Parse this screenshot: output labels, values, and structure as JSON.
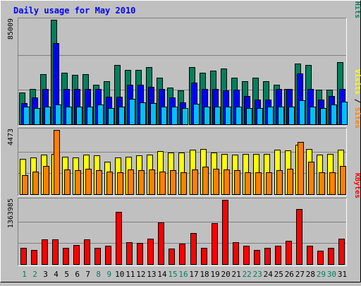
{
  "title": "Daily usage for May 2010",
  "colors": {
    "background": "#c0c0c0",
    "panel": "#c0c0c0",
    "title": "#0000ff",
    "hits": "#00805c",
    "files": "#0000ff",
    "pages": "#00c0ff",
    "visits": "#ffff00",
    "sites": "#ff8000",
    "kbytes": "#ff0000",
    "weekday_label": "#000000",
    "weekend_label": "#00805c"
  },
  "chart_data": [
    {
      "type": "bar",
      "panel": "hits",
      "ymax_label": "85009",
      "ymax": 85009,
      "legend": [
        {
          "name": "Hits",
          "sep": " / ",
          "color": "#00805c"
        },
        {
          "name": "Files",
          "sep": " / ",
          "color": "#0000ff"
        },
        {
          "name": "Pages",
          "sep": "",
          "color": "#00c0ff"
        }
      ],
      "series": [
        {
          "name": "Hits",
          "color": "#00805c",
          "values": [
            26100,
            29000,
            40600,
            85000,
            42000,
            40000,
            40600,
            31900,
            35300,
            48300,
            44000,
            44000,
            46400,
            38000,
            30000,
            27600,
            46400,
            42000,
            43400,
            45300,
            37700,
            35000,
            38000,
            34800,
            32400,
            29000,
            49300,
            48300,
            28100,
            28100,
            50700
          ]
        },
        {
          "name": "Files",
          "color": "#0000ff",
          "values": [
            17400,
            21800,
            29000,
            66200,
            29000,
            29000,
            29000,
            29000,
            22300,
            22300,
            31900,
            31900,
            30400,
            29000,
            21800,
            17900,
            33800,
            29000,
            29000,
            27600,
            28100,
            23200,
            20300,
            20300,
            29000,
            29000,
            41600,
            29000,
            20300,
            23200,
            29000
          ]
        },
        {
          "name": "Pages",
          "color": "#00c0ff",
          "values": [
            14500,
            13100,
            14500,
            15900,
            14500,
            14500,
            14500,
            15900,
            13100,
            14500,
            20800,
            17900,
            17400,
            14500,
            14500,
            13100,
            16400,
            14500,
            14500,
            14500,
            14500,
            13100,
            13100,
            14500,
            14500,
            14500,
            19300,
            14500,
            13100,
            15900,
            18400
          ]
        }
      ]
    },
    {
      "type": "bar",
      "panel": "visits",
      "ymax_label": "4473",
      "ymax": 4473,
      "legend": [
        {
          "name": "Sites",
          "sep": " / ",
          "color": "#ff8000"
        },
        {
          "name": "Visits",
          "sep": "",
          "color": "#ffff00"
        }
      ],
      "series": [
        {
          "name": "Visits",
          "color": "#ffff00",
          "values": [
            2450,
            2570,
            2760,
            2820,
            2620,
            2570,
            2760,
            2700,
            2280,
            2570,
            2620,
            2680,
            2760,
            2990,
            2880,
            2880,
            3110,
            3170,
            2880,
            2820,
            2760,
            2820,
            2820,
            2820,
            3110,
            3060,
            3460,
            3170,
            2760,
            2820,
            3110
          ]
        },
        {
          "name": "Sites",
          "color": "#ff8000",
          "values": [
            1330,
            1560,
            1960,
            4470,
            1730,
            1670,
            1790,
            1670,
            1560,
            1500,
            1730,
            1670,
            1730,
            1560,
            1670,
            1500,
            1730,
            1900,
            1790,
            1730,
            1670,
            1500,
            1500,
            1500,
            1670,
            1790,
            3640,
            2250,
            1500,
            1500,
            1960
          ]
        }
      ]
    },
    {
      "type": "bar",
      "panel": "kbytes",
      "ymax_label": "1363985",
      "ymax": 1363985,
      "legend": [
        {
          "name": "KBytes",
          "sep": "",
          "color": "#ff0000"
        }
      ],
      "series": [
        {
          "name": "KBytes",
          "color": "#ff0000",
          "values": [
            339000,
            294000,
            525000,
            525000,
            339000,
            398000,
            525000,
            339000,
            384000,
            1110000,
            463000,
            450000,
            539000,
            877000,
            325000,
            431000,
            666000,
            339000,
            862000,
            1364000,
            463000,
            384000,
            294000,
            339000,
            384000,
            495000,
            1166000,
            384000,
            279000,
            339000,
            539000
          ]
        }
      ]
    }
  ],
  "x_labels": [
    "1",
    "2",
    "3",
    "4",
    "5",
    "6",
    "7",
    "8",
    "9",
    "10",
    "11",
    "12",
    "13",
    "14",
    "15",
    "16",
    "17",
    "18",
    "19",
    "20",
    "21",
    "22",
    "23",
    "24",
    "25",
    "26",
    "27",
    "28",
    "29",
    "30",
    "31"
  ],
  "weekend_days": [
    "1",
    "2",
    "8",
    "9",
    "15",
    "16",
    "22",
    "23",
    "29",
    "30"
  ]
}
